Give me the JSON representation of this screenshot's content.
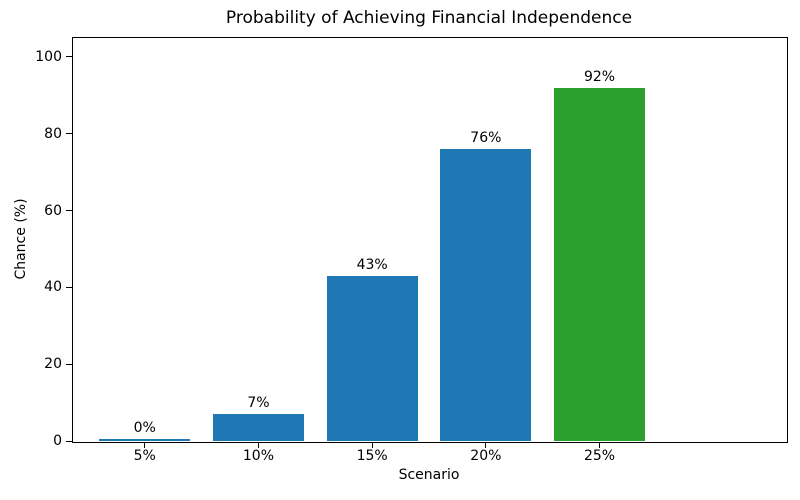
{
  "chart_data": {
    "type": "bar",
    "title": "Probability of Achieving Financial Independence",
    "xlabel": "Scenario",
    "ylabel": "Chance (%)",
    "categories": [
      "5%",
      "10%",
      "15%",
      "20%",
      "25%"
    ],
    "values": [
      0,
      7,
      43,
      76,
      92
    ],
    "value_labels": [
      "0%",
      "7%",
      "43%",
      "76%",
      "92%"
    ],
    "bar_colors": [
      "#1f77b4",
      "#1f77b4",
      "#1f77b4",
      "#1f77b4",
      "#2ca02c"
    ],
    "yticks": [
      0,
      20,
      40,
      60,
      80,
      100
    ],
    "ylim": [
      0,
      105.2
    ],
    "grid": false,
    "legend": null,
    "axis_color": "#000000",
    "background_color": "#ffffff"
  }
}
